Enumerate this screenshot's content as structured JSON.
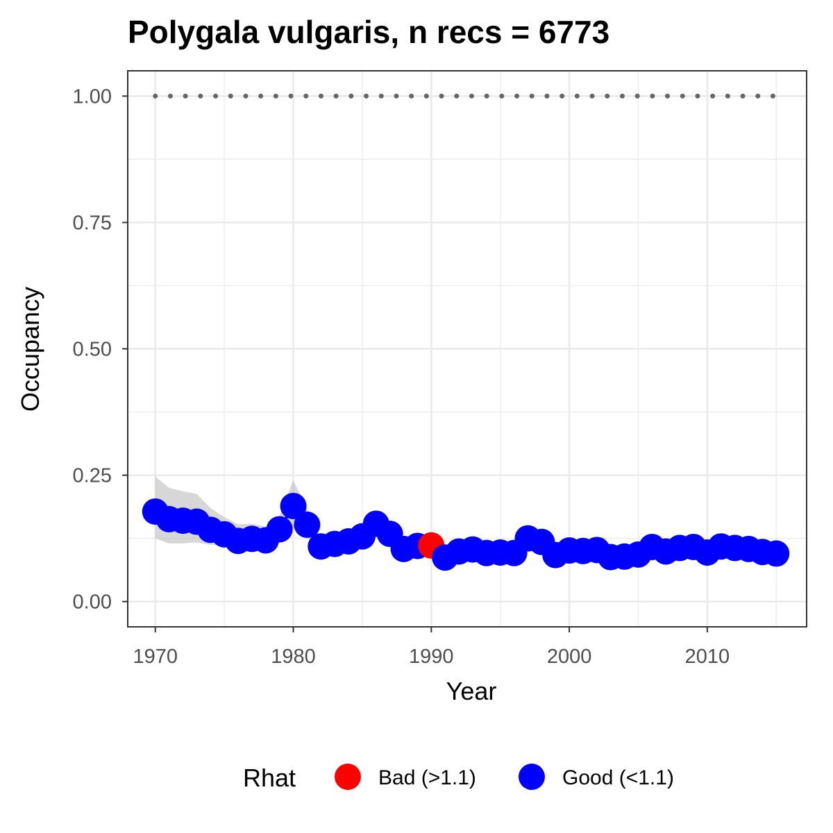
{
  "chart_data": {
    "type": "line",
    "title": "Polygala vulgaris, n recs = 6773",
    "xlabel": "Year",
    "ylabel": "Occupancy",
    "xlim": [
      1968,
      2017.2
    ],
    "ylim": [
      -0.05,
      1.05
    ],
    "x_ticks": [
      1970,
      1980,
      1990,
      2000,
      2010
    ],
    "x_tick_labels": [
      "1970",
      "1980",
      "1990",
      "2000",
      "2010"
    ],
    "y_ticks": [
      0,
      0.25,
      0.5,
      0.75,
      1
    ],
    "y_tick_labels": [
      "0.00",
      "0.25",
      "0.50",
      "0.75",
      "1.00"
    ],
    "grid": true,
    "legend": {
      "title": "Rhat",
      "position": "bottom",
      "entries": [
        {
          "label": "Bad (>1.1)",
          "color": "#ff0000"
        },
        {
          "label": "Good (<1.1)",
          "color": "#0000ff"
        }
      ]
    },
    "colors": {
      "bad": "#ff0000",
      "good": "#0000ff",
      "ribbon": "#bebebe",
      "reference": "#666666"
    },
    "reference_line": {
      "y": 1.0,
      "style": "dotted"
    },
    "series": [
      {
        "x": [
          1970,
          1971,
          1972,
          1973,
          1974,
          1975,
          1976,
          1977,
          1978,
          1979,
          1980,
          1981,
          1982,
          1983,
          1984,
          1985,
          1986,
          1987,
          1988,
          1989,
          1990,
          1991,
          1992,
          1993,
          1994,
          1995,
          1996,
          1997,
          1998,
          1999,
          2000,
          2001,
          2002,
          2003,
          2004,
          2005,
          2006,
          2007,
          2008,
          2009,
          2010,
          2011,
          2012,
          2013,
          2014,
          2015
        ],
        "y": [
          0.178,
          0.163,
          0.16,
          0.158,
          0.142,
          0.133,
          0.12,
          0.124,
          0.121,
          0.143,
          0.189,
          0.152,
          0.109,
          0.114,
          0.119,
          0.129,
          0.154,
          0.134,
          0.104,
          0.11,
          0.111,
          0.087,
          0.099,
          0.103,
          0.096,
          0.097,
          0.096,
          0.125,
          0.118,
          0.092,
          0.101,
          0.1,
          0.102,
          0.088,
          0.089,
          0.093,
          0.108,
          0.099,
          0.106,
          0.108,
          0.097,
          0.109,
          0.106,
          0.104,
          0.098,
          0.095
        ],
        "lower": [
          0.125,
          0.115,
          0.115,
          0.117,
          0.112,
          0.112,
          0.11,
          0.113,
          0.112,
          0.125,
          0.145,
          0.128,
          0.097,
          0.1,
          0.106,
          0.115,
          0.135,
          0.118,
          0.093,
          0.097,
          0.099,
          0.079,
          0.09,
          0.093,
          0.087,
          0.088,
          0.087,
          0.112,
          0.106,
          0.083,
          0.091,
          0.09,
          0.092,
          0.079,
          0.08,
          0.084,
          0.097,
          0.089,
          0.096,
          0.098,
          0.088,
          0.099,
          0.096,
          0.094,
          0.089,
          0.086
        ],
        "upper": [
          0.247,
          0.225,
          0.218,
          0.213,
          0.185,
          0.167,
          0.153,
          0.154,
          0.148,
          0.17,
          0.24,
          0.183,
          0.124,
          0.13,
          0.134,
          0.145,
          0.176,
          0.152,
          0.117,
          0.124,
          0.125,
          0.097,
          0.11,
          0.114,
          0.106,
          0.107,
          0.106,
          0.139,
          0.131,
          0.102,
          0.112,
          0.111,
          0.113,
          0.098,
          0.099,
          0.103,
          0.12,
          0.11,
          0.117,
          0.119,
          0.107,
          0.12,
          0.117,
          0.115,
          0.108,
          0.105
        ],
        "rhat": [
          "good",
          "good",
          "good",
          "good",
          "good",
          "good",
          "good",
          "good",
          "good",
          "good",
          "good",
          "good",
          "good",
          "good",
          "good",
          "good",
          "good",
          "good",
          "good",
          "good",
          "bad",
          "good",
          "good",
          "good",
          "good",
          "good",
          "good",
          "good",
          "good",
          "good",
          "good",
          "good",
          "good",
          "good",
          "good",
          "good",
          "good",
          "good",
          "good",
          "good",
          "good",
          "good",
          "good",
          "good",
          "good",
          "good"
        ]
      }
    ]
  }
}
